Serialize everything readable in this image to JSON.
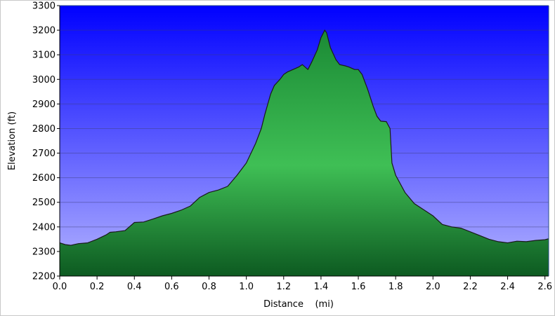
{
  "chart_data": {
    "type": "area",
    "title": "",
    "xlabel": "Distance    (mi)",
    "ylabel": "Elevation (ft)",
    "xlim": [
      0.0,
      2.62
    ],
    "ylim": [
      2200,
      3300
    ],
    "xticks": [
      "0.0",
      "0.2",
      "0.4",
      "0.6",
      "0.8",
      "1.0",
      "1.2",
      "1.4",
      "1.6",
      "1.8",
      "2.0",
      "2.2",
      "2.4",
      "2.6"
    ],
    "yticks": [
      "2200",
      "2300",
      "2400",
      "2500",
      "2600",
      "2700",
      "2800",
      "2900",
      "3000",
      "3100",
      "3200",
      "3300"
    ],
    "grid": true,
    "legend": "none",
    "background_gradient": [
      "#0000ff",
      "#b4b4ff"
    ],
    "fill_colors": [
      "#1b8a35",
      "#3fbf55",
      "#0d5a21"
    ],
    "line_color": "#1a1a1a",
    "series": [
      {
        "x": [
          0.0,
          0.03,
          0.06,
          0.1,
          0.15,
          0.2,
          0.25,
          0.27,
          0.3,
          0.35,
          0.4,
          0.45,
          0.5,
          0.55,
          0.6,
          0.65,
          0.7,
          0.75,
          0.8,
          0.85,
          0.9,
          0.95,
          1.0,
          1.05,
          1.08,
          1.1,
          1.13,
          1.15,
          1.18,
          1.2,
          1.22,
          1.25,
          1.28,
          1.3,
          1.33,
          1.35,
          1.38,
          1.4,
          1.42,
          1.43,
          1.45,
          1.48,
          1.5,
          1.53,
          1.55,
          1.58,
          1.6,
          1.62,
          1.65,
          1.68,
          1.7,
          1.72,
          1.75,
          1.77,
          1.78,
          1.8,
          1.85,
          1.9,
          1.95,
          2.0,
          2.05,
          2.1,
          2.15,
          2.2,
          2.25,
          2.3,
          2.35,
          2.4,
          2.45,
          2.5,
          2.55,
          2.6,
          2.62
        ],
        "y": [
          2335,
          2328,
          2325,
          2332,
          2335,
          2350,
          2368,
          2378,
          2380,
          2385,
          2418,
          2420,
          2432,
          2445,
          2455,
          2468,
          2485,
          2520,
          2540,
          2550,
          2565,
          2610,
          2660,
          2740,
          2800,
          2860,
          2940,
          2975,
          3000,
          3020,
          3030,
          3040,
          3050,
          3060,
          3040,
          3070,
          3120,
          3170,
          3200,
          3190,
          3130,
          3080,
          3060,
          3055,
          3050,
          3040,
          3040,
          3020,
          2960,
          2890,
          2850,
          2830,
          2828,
          2800,
          2660,
          2610,
          2540,
          2495,
          2470,
          2445,
          2410,
          2400,
          2395,
          2380,
          2365,
          2350,
          2340,
          2335,
          2342,
          2340,
          2345,
          2348,
          2352
        ]
      }
    ]
  }
}
